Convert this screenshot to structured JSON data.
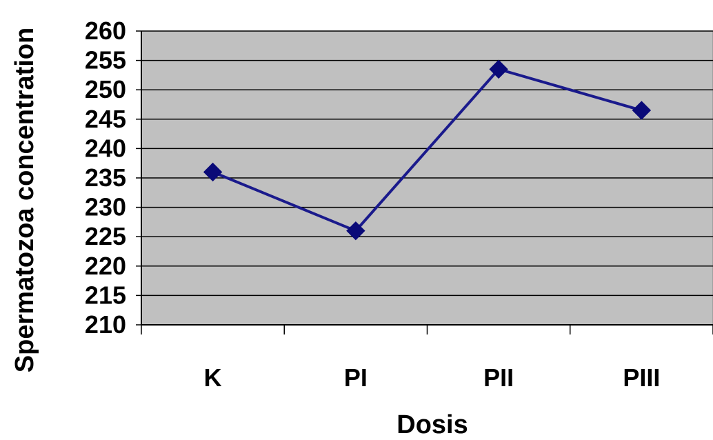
{
  "chart_data": {
    "type": "line",
    "title": "",
    "xlabel": "Dosis",
    "ylabel": "Spermatozoa  concentration",
    "categories": [
      "K",
      "PI",
      "PII",
      "PIII"
    ],
    "series": [
      {
        "values": [
          236,
          226,
          253.5,
          246.5
        ]
      }
    ],
    "ylim": [
      210,
      260
    ],
    "ytick_step": 5,
    "grid": true,
    "legend": "none",
    "colors": {
      "plot_background": "#c0c0c0",
      "line": "#1a1a8c",
      "marker": "#0a0a78",
      "gridline": "#000000"
    }
  }
}
